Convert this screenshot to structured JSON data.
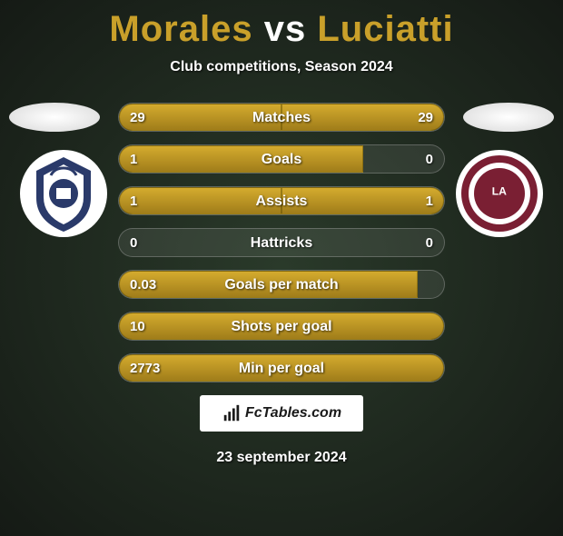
{
  "header": {
    "player1": "Morales",
    "vs": "vs",
    "player2": "Luciatti",
    "subtitle": "Club competitions, Season 2024"
  },
  "colors": {
    "accent": "#c9a02a",
    "bar_gradient_top": "#d4ab2e",
    "bar_gradient_bottom": "#a07d1a",
    "text": "#ffffff",
    "crest_left_primary": "#2a3a6a",
    "crest_left_secondary": "#ffffff",
    "crest_right_primary": "#7a1f33",
    "crest_right_secondary": "#ffffff"
  },
  "stats": [
    {
      "label": "Matches",
      "left_value": "29",
      "right_value": "29",
      "left_fill_pct": 50,
      "right_fill_pct": 50,
      "single_left": false
    },
    {
      "label": "Goals",
      "left_value": "1",
      "right_value": "0",
      "left_fill_pct": 75,
      "right_fill_pct": 0,
      "single_left": false
    },
    {
      "label": "Assists",
      "left_value": "1",
      "right_value": "1",
      "left_fill_pct": 50,
      "right_fill_pct": 50,
      "single_left": false
    },
    {
      "label": "Hattricks",
      "left_value": "0",
      "right_value": "0",
      "left_fill_pct": 0,
      "right_fill_pct": 0,
      "single_left": false
    },
    {
      "label": "Goals per match",
      "left_value": "0.03",
      "right_value": "",
      "left_fill_pct": 92,
      "right_fill_pct": 0,
      "single_left": true
    },
    {
      "label": "Shots per goal",
      "left_value": "10",
      "right_value": "",
      "left_fill_pct": 100,
      "right_fill_pct": 0,
      "single_left": true
    },
    {
      "label": "Min per goal",
      "left_value": "2773",
      "right_value": "",
      "left_fill_pct": 100,
      "right_fill_pct": 0,
      "single_left": true
    }
  ],
  "branding": "FcTables.com",
  "date": "23 september 2024"
}
